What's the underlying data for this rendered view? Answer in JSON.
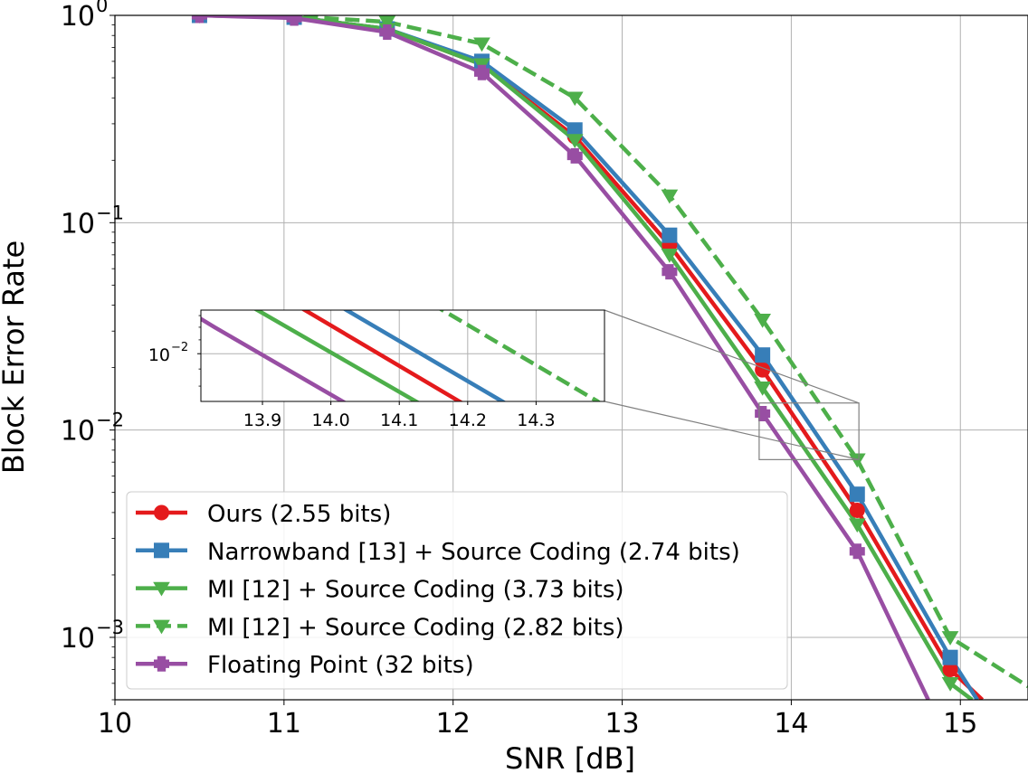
{
  "chart_data": {
    "type": "line",
    "xlabel": "SNR [dB]",
    "ylabel": "Block Error Rate",
    "xlim": [
      10,
      15.4
    ],
    "ylim": [
      0.0005,
      1
    ],
    "yscale": "log",
    "grid": true,
    "legend_position": "lower-left",
    "x_ticks": [
      "10",
      "11",
      "12",
      "13",
      "14",
      "15"
    ],
    "y_ticks": [
      {
        "base": "10",
        "exp": "0"
      },
      {
        "base": "10",
        "exp": "−1"
      },
      {
        "base": "10",
        "exp": "−2"
      },
      {
        "base": "10",
        "exp": "−3"
      }
    ],
    "series": [
      {
        "name": "Ours (2.55 bits)",
        "color": "#e41a1c",
        "marker": "circle",
        "dash": false,
        "x": [
          10.5,
          11.06,
          11.61,
          12.17,
          12.72,
          13.28,
          13.83,
          14.39,
          14.94,
          15.13
        ],
        "y": [
          1.0,
          0.98,
          0.86,
          0.58,
          0.26,
          0.078,
          0.0195,
          0.0041,
          0.0007,
          0.0005
        ]
      },
      {
        "name": "Narrowband [13] + Source Coding (2.74 bits)",
        "color": "#377eb8",
        "marker": "square",
        "dash": false,
        "x": [
          10.5,
          11.06,
          11.61,
          12.17,
          12.72,
          13.28,
          13.83,
          14.39,
          14.94,
          15.1
        ],
        "y": [
          1.0,
          0.98,
          0.86,
          0.6,
          0.28,
          0.087,
          0.023,
          0.0049,
          0.0008,
          0.0005
        ]
      },
      {
        "name": "MI [12] + Source Coding (3.73 bits)",
        "color": "#4daf4a",
        "marker": "triangle-down",
        "dash": false,
        "x": [
          10.5,
          11.06,
          11.61,
          12.17,
          12.72,
          13.28,
          13.83,
          14.39,
          14.94,
          15.07
        ],
        "y": [
          1.0,
          0.98,
          0.86,
          0.58,
          0.25,
          0.07,
          0.016,
          0.0035,
          0.0006,
          0.0005
        ]
      },
      {
        "name": "MI [12] + Source Coding (2.82 bits)",
        "color": "#4daf4a",
        "marker": "triangle-down",
        "dash": true,
        "x": [
          10.5,
          11.06,
          11.61,
          12.17,
          12.72,
          13.28,
          13.83,
          14.39,
          14.94,
          15.4
        ],
        "y": [
          1.0,
          0.99,
          0.93,
          0.73,
          0.4,
          0.135,
          0.034,
          0.0072,
          0.001,
          0.00058
        ]
      },
      {
        "name": "Floating Point (32 bits)",
        "color": "#984ea3",
        "marker": "plus",
        "dash": false,
        "x": [
          10.5,
          11.06,
          11.61,
          12.17,
          12.72,
          13.28,
          13.83,
          14.39,
          14.81
        ],
        "y": [
          1.0,
          0.97,
          0.83,
          0.53,
          0.21,
          0.058,
          0.012,
          0.0026,
          0.0005
        ]
      }
    ],
    "inset": {
      "xlim": [
        13.81,
        14.4
      ],
      "ylim": [
        0.0072,
        0.0135
      ],
      "x_ticks": [
        "13.9",
        "14.0",
        "14.1",
        "14.2",
        "14.3"
      ],
      "y_tick": {
        "base": "10",
        "exp": "−2"
      }
    }
  }
}
